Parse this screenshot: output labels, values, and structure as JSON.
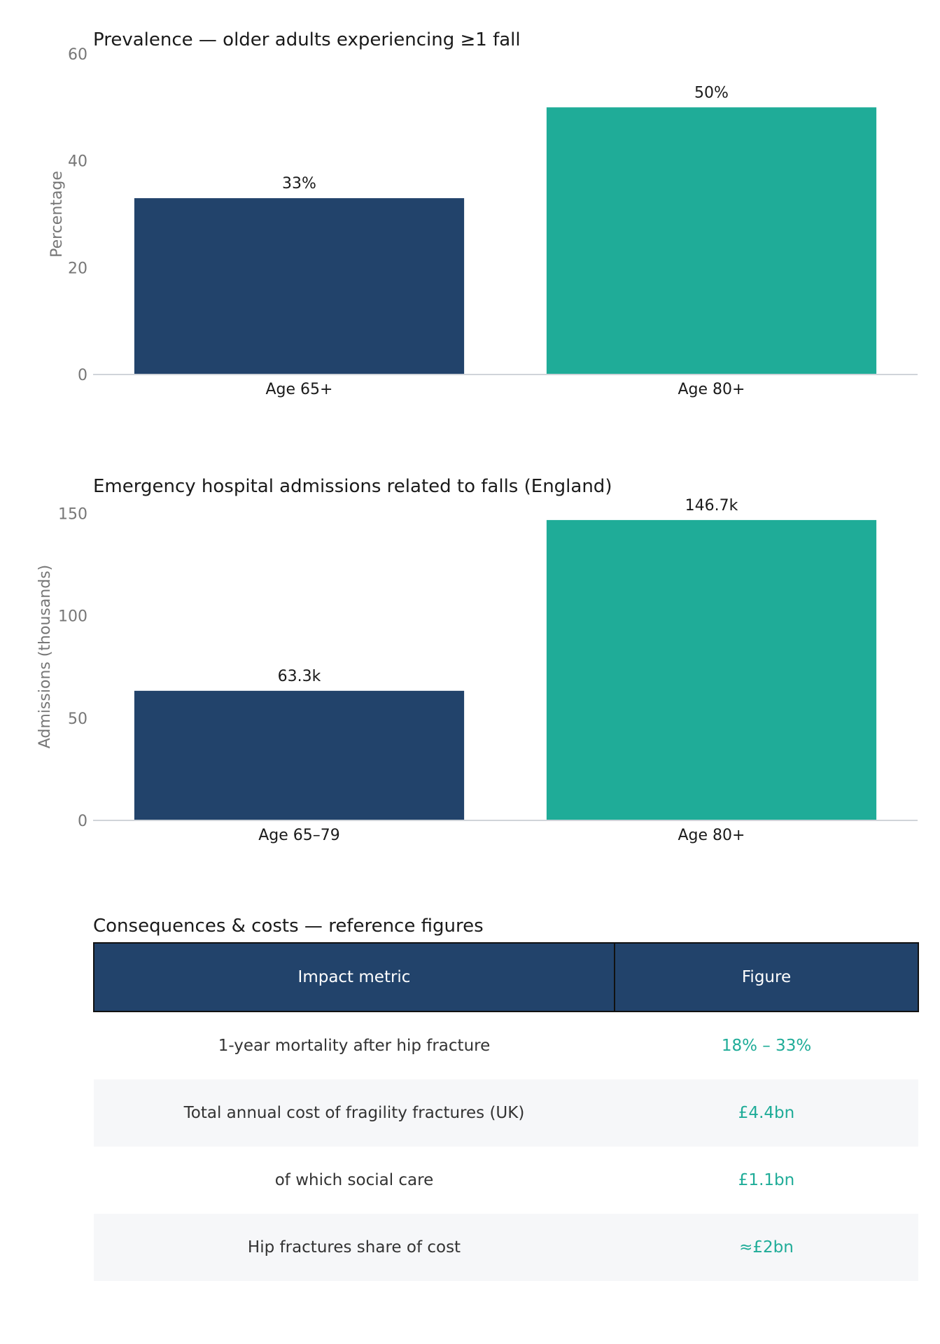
{
  "chart_data": [
    {
      "type": "bar",
      "title": "Prevalence — older adults experiencing ≥1 fall",
      "xlabel": "",
      "ylabel": "Percentage",
      "categories": [
        "Age 65+",
        "Age 80+"
      ],
      "values": [
        33,
        50
      ],
      "data_labels": [
        "33%",
        "50%"
      ],
      "ylim": [
        0,
        60
      ],
      "yticks": [
        0,
        20,
        40,
        60
      ],
      "colors": [
        "#22436b",
        "#1fac98"
      ],
      "grid": false
    },
    {
      "type": "bar",
      "title": "Emergency hospital admissions related to falls (England)",
      "xlabel": "",
      "ylabel": "Admissions (thousands)",
      "categories": [
        "Age 65–79",
        "Age 80+"
      ],
      "values": [
        63.3,
        146.7
      ],
      "data_labels": [
        "63.3k",
        "146.7k"
      ],
      "ylim": [
        0,
        160
      ],
      "yticks": [
        0,
        50,
        100,
        150
      ],
      "colors": [
        "#22436b",
        "#1fac98"
      ],
      "grid": false
    }
  ],
  "table": {
    "title": "Consequences & costs — reference figures",
    "headers": [
      "Impact metric",
      "Figure"
    ],
    "rows": [
      {
        "metric": "1-year mortality after hip fracture",
        "value": "18% – 33%"
      },
      {
        "metric": "Total annual cost of fragility fractures (UK)",
        "value": "£4.4bn"
      },
      {
        "metric": "of which social care",
        "value": "£1.1bn"
      },
      {
        "metric": "Hip fractures share of cost",
        "value": "≈£2bn"
      }
    ]
  },
  "colors": {
    "navy": "#22436b",
    "teal": "#1fac98",
    "axis": "#d0d4d9",
    "tick_text": "#777777",
    "text": "#1a1a1a"
  }
}
